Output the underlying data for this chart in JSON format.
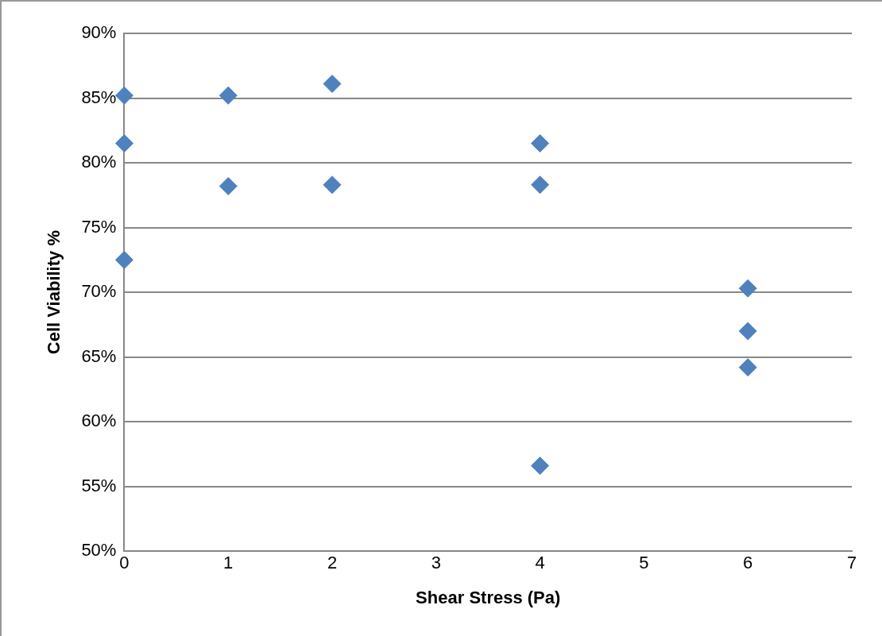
{
  "chart_data": {
    "type": "scatter",
    "xlabel": "Shear Stress (Pa)",
    "ylabel": "Cell Viability %",
    "series": [
      {
        "color": "#4f81bd",
        "x": [
          0,
          0,
          0,
          1,
          1,
          2,
          2,
          4,
          4,
          4,
          6,
          6,
          6
        ],
        "values": [
          85.2,
          81.5,
          72.5,
          85.2,
          78.2,
          86.1,
          78.3,
          81.5,
          78.3,
          56.6,
          70.3,
          67.0,
          64.2
        ]
      }
    ],
    "xlim": [
      0,
      7
    ],
    "xticks": [
      0,
      1,
      2,
      3,
      4,
      5,
      6,
      7
    ],
    "ylim": [
      50,
      90
    ],
    "yticks": [
      {
        "value": 50,
        "label": "50%"
      },
      {
        "value": 55,
        "label": "55%"
      },
      {
        "value": 60,
        "label": "60%"
      },
      {
        "value": 65,
        "label": "65%"
      },
      {
        "value": 70,
        "label": "70%"
      },
      {
        "value": 75,
        "label": "75%"
      },
      {
        "value": 80,
        "label": "80%"
      },
      {
        "value": 85,
        "label": "85%"
      },
      {
        "value": 90,
        "label": "90%"
      }
    ],
    "grid": "y",
    "marker": "diamond"
  }
}
